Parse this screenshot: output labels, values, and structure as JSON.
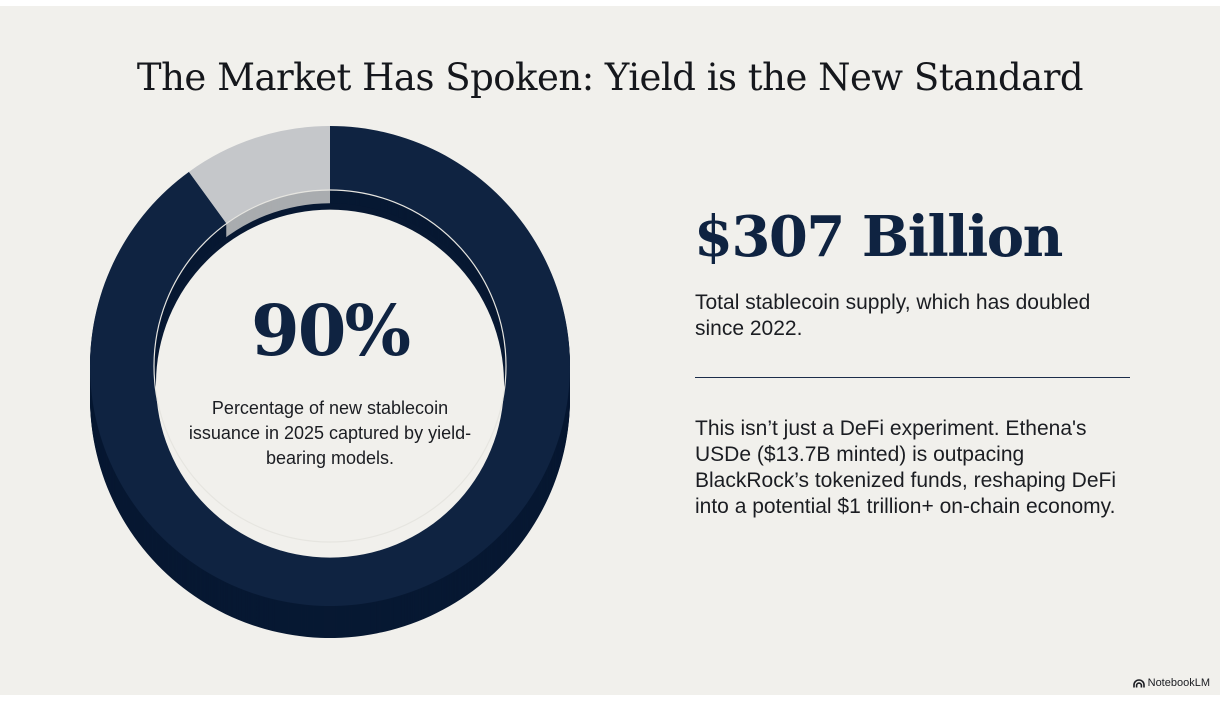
{
  "slide": {
    "title": "The Market Has Spoken: Yield is the New Standard",
    "donut": {
      "center_value": "90%",
      "center_label": "Percentage of new stablecoin issuance in 2025 captured by yield-bearing models."
    },
    "stat": {
      "value": "$307 Billion",
      "description": "Total stablecoin supply, which has doubled since 2022."
    },
    "body": "This isn’t just a DeFi experiment. Ethena's USDe ($13.7B minted) is outpacing BlackRock’s tokenized funds, reshaping DeFi into a potential $1 trillion+ on-chain economy.",
    "watermark": {
      "label": "NotebookLM",
      "icon": "notebooklm-logo-icon"
    }
  },
  "chart_data": {
    "type": "pie",
    "slices": [
      {
        "value": 90,
        "color": "#0f2341"
      },
      {
        "value": 10,
        "color": "#c5c7ca"
      }
    ],
    "center_text": "90%"
  },
  "colors": {
    "background": "#f1f0ec",
    "accent": "#0f2341",
    "accent_side": "#071832",
    "muted": "#c5c7ca",
    "muted_side": "#a9acaf"
  }
}
